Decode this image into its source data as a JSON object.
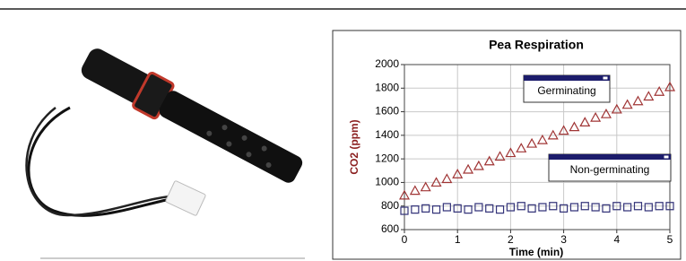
{
  "chart_data": {
    "type": "scatter",
    "title": "Pea Respiration",
    "x_label": "Time (min)",
    "y_label": "CO2 (ppm)",
    "x": [
      0,
      0.2,
      0.4,
      0.6,
      0.8,
      1,
      1.2,
      1.4,
      1.6,
      1.8,
      2,
      2.2,
      2.4,
      2.6,
      2.8,
      3,
      3.2,
      3.4,
      3.6,
      3.8,
      4,
      4.2,
      4.4,
      4.6,
      4.8,
      5
    ],
    "series": [
      {
        "name": "Germinating",
        "color": "#a03535",
        "marker": "triangle",
        "values": [
          890,
          930,
          960,
          1000,
          1030,
          1070,
          1110,
          1140,
          1180,
          1220,
          1250,
          1290,
          1330,
          1360,
          1400,
          1440,
          1470,
          1510,
          1550,
          1580,
          1620,
          1660,
          1690,
          1730,
          1770,
          1810
        ]
      },
      {
        "name": "Non-germinating",
        "color": "#35357a",
        "marker": "square",
        "values": [
          760,
          770,
          780,
          770,
          790,
          780,
          770,
          790,
          780,
          770,
          790,
          800,
          780,
          790,
          800,
          780,
          790,
          800,
          790,
          780,
          800,
          790,
          800,
          790,
          800,
          800
        ]
      }
    ],
    "xlim": [
      0,
      5
    ],
    "xticks": [
      0,
      1,
      2,
      3,
      4,
      5
    ],
    "ylim": [
      600,
      2000
    ],
    "yticks": [
      600,
      800,
      1000,
      1200,
      1400,
      1600,
      1800,
      2000
    ],
    "grid": true
  }
}
